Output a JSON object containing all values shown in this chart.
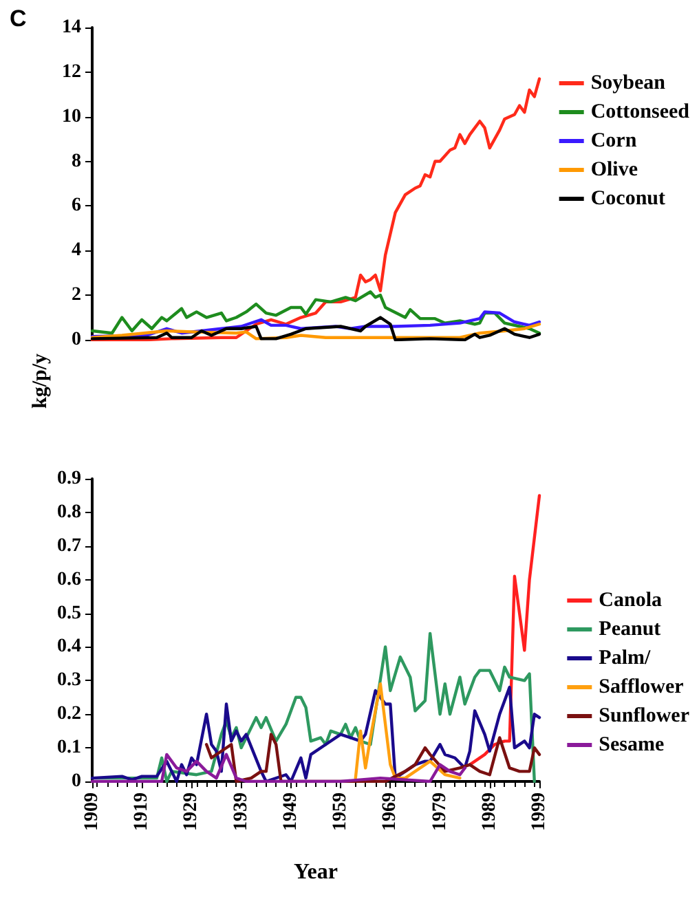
{
  "chart_data": [
    {
      "type": "line",
      "title": "C",
      "ylabel": "kg/p/y",
      "xlim": [
        1909,
        1999
      ],
      "ylim": [
        0,
        14
      ],
      "yticks": [
        0,
        2,
        4,
        6,
        8,
        10,
        12,
        14
      ],
      "tick_labels": "y",
      "legend": "right",
      "grid": false,
      "marker": "none",
      "line_style": "solid",
      "series": [
        {
          "name": "Soybean",
          "color": "#ff2a1a",
          "x": [
            1909,
            1920,
            1925,
            1935,
            1938,
            1942,
            1945,
            1948,
            1951,
            1954,
            1956,
            1959,
            1962,
            1963,
            1964,
            1965,
            1966,
            1967,
            1968,
            1970,
            1972,
            1974,
            1975,
            1976,
            1977,
            1978,
            1979,
            1981,
            1982,
            1983,
            1984,
            1985,
            1987,
            1988,
            1989,
            1991,
            1992,
            1994,
            1995,
            1996,
            1997,
            1998,
            1999
          ],
          "values": [
            0,
            0,
            0.05,
            0.1,
            0.1,
            0.7,
            0.9,
            0.7,
            1.0,
            1.2,
            1.7,
            1.7,
            1.9,
            2.9,
            2.6,
            2.7,
            2.9,
            2.2,
            3.8,
            5.7,
            6.5,
            6.8,
            6.9,
            7.4,
            7.3,
            8.0,
            8.0,
            8.5,
            8.6,
            9.2,
            8.8,
            9.2,
            9.8,
            9.5,
            8.6,
            9.4,
            9.9,
            10.1,
            10.5,
            10.2,
            11.2,
            10.9,
            11.7
          ]
        },
        {
          "name": "Cottonseed",
          "color": "#1e8c1e",
          "x": [
            1909,
            1913,
            1915,
            1917,
            1919,
            1921,
            1923,
            1924,
            1927,
            1928,
            1930,
            1932,
            1935,
            1936,
            1938,
            1940,
            1942,
            1944,
            1946,
            1949,
            1951,
            1952,
            1954,
            1957,
            1960,
            1962,
            1965,
            1966,
            1967,
            1968,
            1972,
            1973,
            1975,
            1978,
            1980,
            1983,
            1986,
            1987,
            1988,
            1990,
            1992,
            1995,
            1997,
            1999
          ],
          "values": [
            0.4,
            0.3,
            1.0,
            0.4,
            0.9,
            0.5,
            1.0,
            0.85,
            1.4,
            1.0,
            1.25,
            1.0,
            1.2,
            0.85,
            1.0,
            1.25,
            1.6,
            1.2,
            1.1,
            1.45,
            1.45,
            1.15,
            1.8,
            1.7,
            1.9,
            1.75,
            2.15,
            1.9,
            2.0,
            1.45,
            1.0,
            1.35,
            0.95,
            0.95,
            0.75,
            0.85,
            0.7,
            0.75,
            1.2,
            1.2,
            0.75,
            0.6,
            0.5,
            0.3
          ]
        },
        {
          "name": "Corn",
          "color": "#3a1aff",
          "x": [
            1909,
            1920,
            1924,
            1927,
            1935,
            1939,
            1943,
            1945,
            1948,
            1951,
            1958,
            1961,
            1964,
            1970,
            1977,
            1983,
            1987,
            1988,
            1991,
            1994,
            1997,
            1999
          ],
          "values": [
            0.15,
            0.2,
            0.5,
            0.3,
            0.5,
            0.6,
            0.9,
            0.65,
            0.65,
            0.5,
            0.6,
            0.5,
            0.6,
            0.6,
            0.65,
            0.75,
            0.95,
            1.25,
            1.2,
            0.8,
            0.65,
            0.8
          ]
        },
        {
          "name": "Olive",
          "color": "#ff9900",
          "x": [
            1909,
            1915,
            1924,
            1930,
            1938,
            1940,
            1942,
            1948,
            1951,
            1956,
            1972,
            1983,
            1987,
            1992,
            1996,
            1999
          ],
          "values": [
            0.1,
            0.2,
            0.4,
            0.35,
            0.3,
            0.35,
            0.05,
            0.1,
            0.2,
            0.1,
            0.1,
            0.1,
            0.3,
            0.4,
            0.5,
            0.7
          ]
        },
        {
          "name": "Coconut",
          "color": "#000000",
          "x": [
            1909,
            1922,
            1924,
            1925,
            1929,
            1931,
            1933,
            1936,
            1939,
            1942,
            1943,
            1946,
            1949,
            1952,
            1959,
            1963,
            1964,
            1967,
            1969,
            1970,
            1977,
            1984,
            1986,
            1987,
            1989,
            1992,
            1994,
            1997,
            1999
          ],
          "values": [
            0.05,
            0.1,
            0.3,
            0.1,
            0.1,
            0.4,
            0.2,
            0.5,
            0.5,
            0.6,
            0.05,
            0.05,
            0.25,
            0.5,
            0.6,
            0.4,
            0.6,
            1.0,
            0.7,
            0,
            0.05,
            0,
            0.25,
            0.1,
            0.2,
            0.5,
            0.25,
            0.1,
            0.25
          ]
        }
      ]
    },
    {
      "type": "line",
      "xlabel": "Year",
      "xlim": [
        1909,
        1999
      ],
      "xticks": [
        1909,
        1919,
        1929,
        1939,
        1949,
        1959,
        1969,
        1979,
        1989,
        1999
      ],
      "ylim": [
        0,
        0.9
      ],
      "yticks": [
        0,
        0.1,
        0.2,
        0.3,
        0.4,
        0.5,
        0.6,
        0.7,
        0.8,
        0.9
      ],
      "legend": "right",
      "grid": false,
      "marker": "none",
      "line_style": "solid",
      "series": [
        {
          "name": "Canola",
          "color": "#ff2020",
          "x": [
            1985,
            1988,
            1990,
            1992,
            1993,
            1994,
            1995,
            1996,
            1997,
            1999
          ],
          "values": [
            0.05,
            0.08,
            0.11,
            0.12,
            0.12,
            0.61,
            0.5,
            0.39,
            0.6,
            0.85
          ]
        },
        {
          "name": "Peanut",
          "color": "#2e9960",
          "x": [
            1909,
            1922,
            1923,
            1924,
            1925,
            1930,
            1933,
            1935,
            1936,
            1937,
            1938,
            1939,
            1942,
            1943,
            1944,
            1946,
            1948,
            1950,
            1951,
            1952,
            1953,
            1955,
            1956,
            1957,
            1959,
            1960,
            1961,
            1962,
            1963,
            1965,
            1968,
            1969,
            1971,
            1973,
            1974,
            1976,
            1977,
            1979,
            1980,
            1981,
            1983,
            1984,
            1986,
            1987,
            1989,
            1991,
            1992,
            1993,
            1996,
            1997,
            1998
          ],
          "values": [
            0.01,
            0.01,
            0.07,
            0,
            0.03,
            0.02,
            0.03,
            0.14,
            0.18,
            0.13,
            0.16,
            0.1,
            0.19,
            0.16,
            0.19,
            0.12,
            0.17,
            0.25,
            0.25,
            0.22,
            0.12,
            0.13,
            0.11,
            0.15,
            0.14,
            0.17,
            0.13,
            0.16,
            0.12,
            0.11,
            0.4,
            0.27,
            0.37,
            0.31,
            0.21,
            0.24,
            0.44,
            0.2,
            0.29,
            0.2,
            0.31,
            0.23,
            0.31,
            0.33,
            0.33,
            0.27,
            0.34,
            0.31,
            0.3,
            0.32,
            0
          ]
        },
        {
          "name": "Palm/",
          "color": "#1a0a8c",
          "x": [
            1909,
            1915,
            1917,
            1919,
            1922,
            1924,
            1926,
            1927,
            1928,
            1929,
            1930,
            1932,
            1933,
            1934,
            1935,
            1936,
            1937,
            1938,
            1939,
            1940,
            1943,
            1944,
            1948,
            1949,
            1951,
            1952,
            1953,
            1956,
            1959,
            1961,
            1963,
            1964,
            1966,
            1968,
            1969,
            1970,
            1974,
            1976,
            1977,
            1979,
            1980,
            1982,
            1984,
            1985,
            1986,
            1988,
            1989,
            1991,
            1993,
            1994,
            1996,
            1997,
            1998,
            1999
          ],
          "values": [
            0.01,
            0.015,
            0.005,
            0.015,
            0.015,
            0.06,
            0,
            0.05,
            0.02,
            0.07,
            0.05,
            0.2,
            0.11,
            0.09,
            0.03,
            0.23,
            0.12,
            0.15,
            0.12,
            0.14,
            0.03,
            0,
            0.02,
            0,
            0.07,
            0.01,
            0.08,
            0.11,
            0.14,
            0.13,
            0.12,
            0.14,
            0.27,
            0.23,
            0.23,
            0.01,
            0.05,
            0.06,
            0.06,
            0.11,
            0.08,
            0.07,
            0.04,
            0.09,
            0.21,
            0.14,
            0.09,
            0.2,
            0.28,
            0.1,
            0.12,
            0.1,
            0.2,
            0.19
          ]
        },
        {
          "name": "Safflower",
          "color": "#ffa010",
          "x": [
            1962,
            1963,
            1964,
            1965,
            1967,
            1969,
            1970,
            1972,
            1977,
            1980,
            1983
          ],
          "values": [
            0.01,
            0.15,
            0.04,
            0.13,
            0.29,
            0.05,
            0.01,
            0.01,
            0.06,
            0.02,
            0.01
          ]
        },
        {
          "name": "Sunflower",
          "color": "#7a1010",
          "x": [
            1932,
            1933,
            1935,
            1937,
            1938,
            1941,
            1943,
            1944,
            1945,
            1946,
            1947,
            1968,
            1972,
            1974,
            1976,
            1977,
            1980,
            1983,
            1985,
            1987,
            1989,
            1991,
            1993,
            1995,
            1997,
            1998,
            1999
          ],
          "values": [
            0.11,
            0.07,
            0.09,
            0.11,
            0,
            0.01,
            0.03,
            0.03,
            0.14,
            0.11,
            0,
            0,
            0.03,
            0.05,
            0.1,
            0.08,
            0.03,
            0.04,
            0.05,
            0.03,
            0.02,
            0.13,
            0.04,
            0.03,
            0.03,
            0.1,
            0.08
          ]
        },
        {
          "name": "Sesame",
          "color": "#8a1a9a",
          "x": [
            1909,
            1923,
            1924,
            1926,
            1928,
            1930,
            1932,
            1934,
            1936,
            1938,
            1940,
            1959,
            1967,
            1977,
            1979,
            1981,
            1983,
            1984
          ],
          "values": [
            0,
            0,
            0.08,
            0.04,
            0.03,
            0.06,
            0.03,
            0.01,
            0.08,
            0.01,
            0,
            0,
            0.01,
            0,
            0.05,
            0.03,
            0.02,
            0.04
          ]
        }
      ]
    }
  ]
}
